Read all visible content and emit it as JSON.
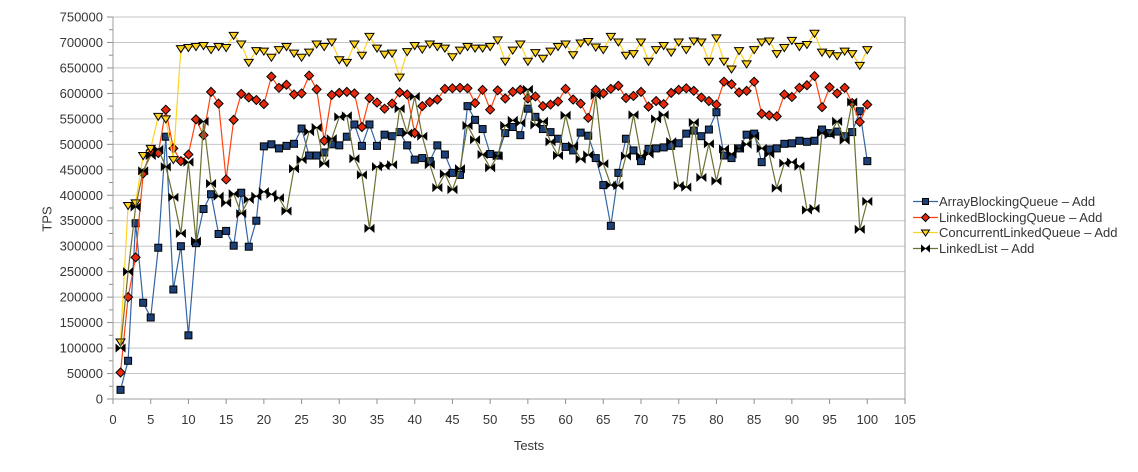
{
  "chart_data": {
    "type": "line",
    "title": "",
    "xlabel": "Tests",
    "ylabel": "TPS",
    "xlim": [
      0,
      105
    ],
    "ylim": [
      0,
      750000
    ],
    "x_ticks": [
      0,
      5,
      10,
      15,
      20,
      25,
      30,
      35,
      40,
      45,
      50,
      55,
      60,
      65,
      70,
      75,
      80,
      85,
      90,
      95,
      100,
      105
    ],
    "y_ticks": [
      0,
      50000,
      100000,
      150000,
      200000,
      250000,
      300000,
      350000,
      400000,
      450000,
      500000,
      550000,
      600000,
      650000,
      700000,
      750000
    ],
    "grid": "horizontal",
    "legend_position": "right",
    "x_start": 1,
    "series": [
      {
        "name": "ArrayBlockingQueue – Add",
        "marker": "square",
        "color": "#3465a4",
        "marker_color": "#1d4078",
        "values": [
          18000,
          75000,
          345000,
          189000,
          160000,
          297000,
          515000,
          215000,
          300000,
          125000,
          306000,
          373000,
          402000,
          324000,
          330000,
          301000,
          405000,
          299000,
          350000,
          496000,
          500000,
          492000,
          497000,
          501000,
          531000,
          478000,
          478000,
          484000,
          500000,
          498000,
          515000,
          539000,
          497000,
          539000,
          497000,
          519000,
          516000,
          524000,
          498000,
          470000,
          473000,
          467000,
          498000,
          480000,
          444000,
          440000,
          575000,
          548000,
          530000,
          481000,
          478000,
          522000,
          534000,
          518000,
          570000,
          554000,
          530000,
          524000,
          511000,
          495000,
          488000,
          523000,
          517000,
          473000,
          420000,
          340000,
          444000,
          511000,
          488000,
          467000,
          491000,
          492000,
          494000,
          497000,
          502000,
          521000,
          527000,
          516000,
          529000,
          563000,
          478000,
          473000,
          492000,
          519000,
          521000,
          465000,
          490000,
          492000,
          501000,
          502000,
          507000,
          505000,
          507000,
          529000,
          522000,
          525000,
          516000,
          524000,
          565000,
          467000
        ]
      },
      {
        "name": "LinkedBlockingQueue – Add",
        "marker": "diamond",
        "color": "#ff420e",
        "marker_color": "#e8280c",
        "values": [
          52000,
          200000,
          278000,
          443000,
          488000,
          483000,
          568000,
          492000,
          467000,
          480000,
          549000,
          518000,
          603000,
          580000,
          431000,
          548000,
          599000,
          592000,
          587000,
          579000,
          633000,
          611000,
          617000,
          598000,
          600000,
          635000,
          608000,
          507000,
          597000,
          601000,
          603000,
          600000,
          534000,
          591000,
          582000,
          570000,
          580000,
          602000,
          598000,
          522000,
          575000,
          583000,
          588000,
          609000,
          610000,
          611000,
          610000,
          581000,
          607000,
          568000,
          606000,
          590000,
          603000,
          607000,
          590000,
          594000,
          575000,
          578000,
          584000,
          609000,
          588000,
          580000,
          552000,
          607000,
          600000,
          609000,
          615000,
          591000,
          595000,
          603000,
          574000,
          585000,
          579000,
          601000,
          607000,
          610000,
          605000,
          592000,
          585000,
          578000,
          623000,
          618000,
          602000,
          605000,
          623000,
          560000,
          557000,
          555000,
          598000,
          593000,
          611000,
          616000,
          634000,
          573000,
          612000,
          600000,
          611000,
          581000,
          544000,
          578000
        ]
      },
      {
        "name": "ConcurrentLinkedQueue – Add",
        "marker": "triangle-down",
        "color": "#ffd320",
        "marker_color": "#ffd320",
        "values": [
          112000,
          380000,
          385000,
          478000,
          492000,
          555000,
          550000,
          470000,
          688000,
          690000,
          692000,
          694000,
          686000,
          692000,
          690000,
          714000,
          697000,
          661000,
          684000,
          683000,
          671000,
          686000,
          692000,
          679000,
          671000,
          681000,
          697000,
          692000,
          701000,
          666000,
          661000,
          697000,
          675000,
          712000,
          689000,
          677000,
          679000,
          632000,
          682000,
          694000,
          687000,
          697000,
          692000,
          689000,
          672000,
          685000,
          692000,
          689000,
          689000,
          692000,
          705000,
          663000,
          685000,
          697000,
          663000,
          680000,
          669000,
          683000,
          692000,
          697000,
          676000,
          699000,
          702000,
          691000,
          686000,
          712000,
          701000,
          675000,
          678000,
          701000,
          663000,
          686000,
          694000,
          681000,
          701000,
          686000,
          703000,
          701000,
          663000,
          709000,
          663000,
          648000,
          684000,
          658000,
          686000,
          701000,
          703000,
          678000,
          690000,
          704000,
          692000,
          696000,
          718000,
          681000,
          678000,
          674000,
          683000,
          678000,
          655000,
          686000
        ]
      },
      {
        "name": "LinkedList – Add",
        "marker": "bowtie",
        "color": "#6d7032",
        "marker_color": "#000000",
        "values": [
          100000,
          250000,
          377000,
          448000,
          478000,
          490000,
          456000,
          396000,
          325000,
          465000,
          310000,
          545000,
          423000,
          398000,
          385000,
          403000,
          364000,
          392000,
          398000,
          407000,
          402000,
          395000,
          369000,
          452000,
          470000,
          525000,
          533000,
          462000,
          511000,
          554000,
          556000,
          472000,
          440000,
          335000,
          456000,
          458000,
          460000,
          570000,
          522000,
          594000,
          516000,
          460000,
          415000,
          442000,
          411000,
          452000,
          537000,
          509000,
          480000,
          454000,
          477000,
          537000,
          547000,
          542000,
          608000,
          538000,
          545000,
          505000,
          478000,
          557000,
          497000,
          471000,
          479000,
          596000,
          462000,
          420000,
          419000,
          477000,
          558000,
          477000,
          481000,
          550000,
          558000,
          505000,
          419000,
          416000,
          543000,
          435000,
          501000,
          428000,
          491000,
          481000,
          492000,
          500000,
          516000,
          492000,
          481000,
          414000,
          463000,
          465000,
          457000,
          371000,
          374000,
          522000,
          519000,
          545000,
          508000,
          583000,
          333000,
          388000
        ]
      }
    ]
  },
  "colors": {
    "grid": "#c6c6c6",
    "axis": "#9f9f9f",
    "tick": "#8f8f8f",
    "text": "#363636",
    "background": "#ffffff"
  }
}
